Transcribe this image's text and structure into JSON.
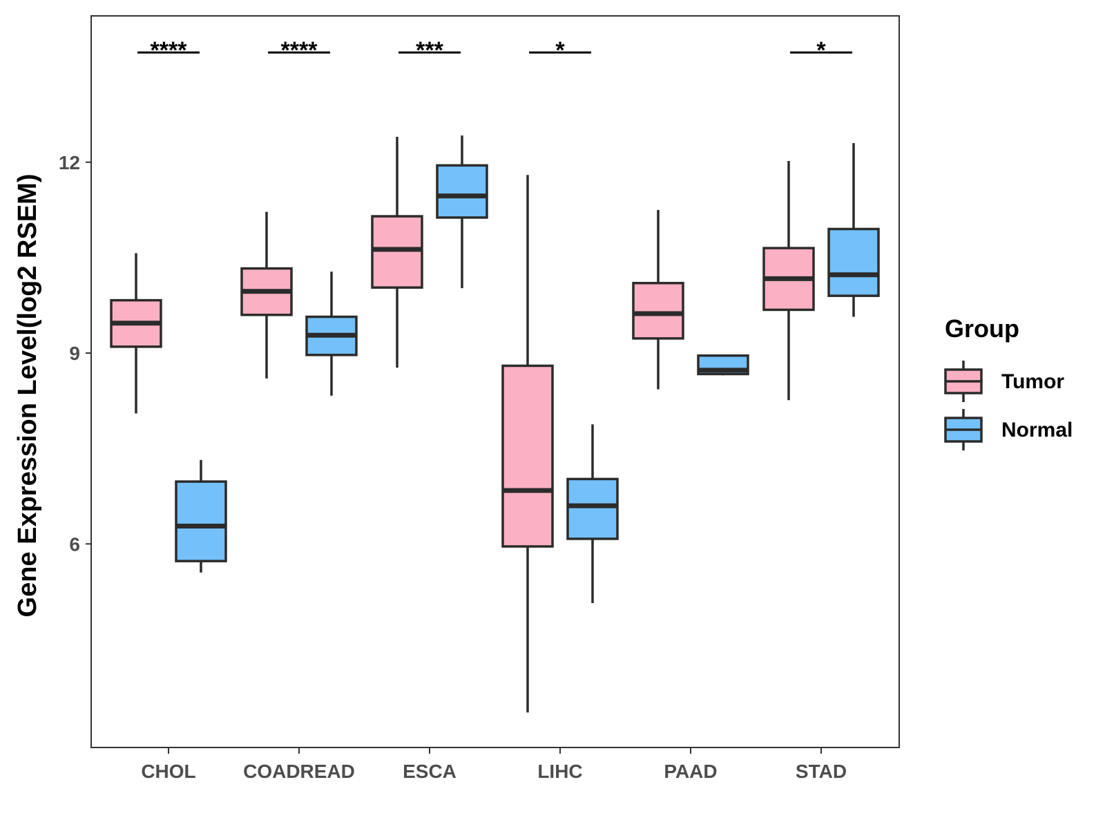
{
  "chart_data": {
    "type": "boxplot",
    "title": "",
    "xlabel": "",
    "ylabel": "Gene Expression Level(log2 RSEM)",
    "ylim": [
      2.8,
      14.3
    ],
    "yticks": [
      6,
      9,
      12
    ],
    "ytick_labels": [
      "6",
      "9",
      "12"
    ],
    "categories": [
      "CHOL",
      "COADREAD",
      "ESCA",
      "LIHC",
      "PAAD",
      "STAD"
    ],
    "legend": {
      "title": "Group",
      "position": "right",
      "entries": [
        "Tumor",
        "Normal"
      ]
    },
    "series": [
      {
        "name": "Tumor",
        "color": "#FBB1C3",
        "boxes": [
          {
            "category": "CHOL",
            "whisker_low": 8.05,
            "q1": 9.1,
            "median": 9.47,
            "q3": 9.83,
            "whisker_high": 10.57
          },
          {
            "category": "COADREAD",
            "whisker_low": 8.6,
            "q1": 9.6,
            "median": 9.97,
            "q3": 10.33,
            "whisker_high": 11.22
          },
          {
            "category": "ESCA",
            "whisker_low": 8.77,
            "q1": 10.03,
            "median": 10.63,
            "q3": 11.15,
            "whisker_high": 12.4
          },
          {
            "category": "LIHC",
            "whisker_low": 3.35,
            "q1": 5.96,
            "median": 6.84,
            "q3": 8.8,
            "whisker_high": 11.8
          },
          {
            "category": "PAAD",
            "whisker_low": 8.43,
            "q1": 9.23,
            "median": 9.62,
            "q3": 10.1,
            "whisker_high": 11.25
          },
          {
            "category": "STAD",
            "whisker_low": 8.26,
            "q1": 9.68,
            "median": 10.17,
            "q3": 10.65,
            "whisker_high": 12.02
          }
        ]
      },
      {
        "name": "Normal",
        "color": "#74C0FA",
        "boxes": [
          {
            "category": "CHOL",
            "whisker_low": 5.55,
            "q1": 5.73,
            "median": 6.28,
            "q3": 6.98,
            "whisker_high": 7.32
          },
          {
            "category": "COADREAD",
            "whisker_low": 8.33,
            "q1": 8.97,
            "median": 9.28,
            "q3": 9.57,
            "whisker_high": 10.28
          },
          {
            "category": "ESCA",
            "whisker_low": 10.02,
            "q1": 11.13,
            "median": 11.47,
            "q3": 11.95,
            "whisker_high": 12.42
          },
          {
            "category": "LIHC",
            "whisker_low": 5.07,
            "q1": 6.08,
            "median": 6.6,
            "q3": 7.02,
            "whisker_high": 7.88
          },
          {
            "category": "PAAD",
            "whisker_low": 8.65,
            "q1": 8.67,
            "median": 8.73,
            "q3": 8.96,
            "whisker_high": 8.96
          },
          {
            "category": "STAD",
            "whisker_low": 9.57,
            "q1": 9.9,
            "median": 10.23,
            "q3": 10.95,
            "whisker_high": 12.3
          }
        ]
      }
    ],
    "significance": [
      {
        "category": "CHOL",
        "label": "****"
      },
      {
        "category": "COADREAD",
        "label": "****"
      },
      {
        "category": "ESCA",
        "label": "***"
      },
      {
        "category": "LIHC",
        "label": "*"
      },
      {
        "category": "PAAD",
        "label": ""
      },
      {
        "category": "STAD",
        "label": "*"
      }
    ],
    "grid": false
  }
}
